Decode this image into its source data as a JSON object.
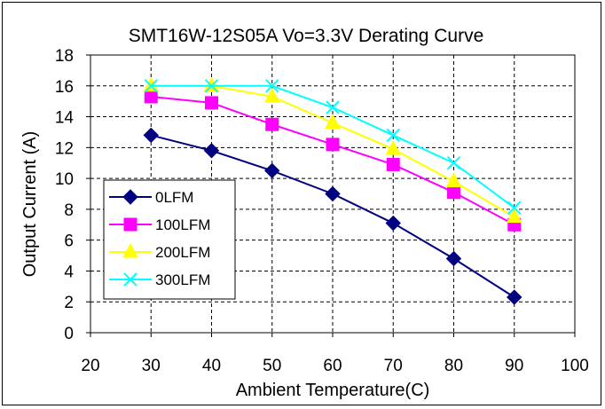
{
  "chart_data": {
    "type": "line",
    "title": "SMT16W-12S05A Vo=3.3V Derating Curve",
    "xlabel": "Ambient Temperature(C)",
    "ylabel": "Output Current (A)",
    "xlim": [
      20,
      100
    ],
    "ylim": [
      0,
      18
    ],
    "xticks": [
      20,
      30,
      40,
      50,
      60,
      70,
      80,
      90,
      100
    ],
    "yticks": [
      0,
      2,
      4,
      6,
      8,
      10,
      12,
      14,
      16,
      18
    ],
    "grid": true,
    "legend_position": "lower-left",
    "x": [
      30,
      40,
      50,
      60,
      70,
      80,
      90
    ],
    "series": [
      {
        "name": "0LFM",
        "color": "#000080",
        "marker": "diamond",
        "values": [
          12.8,
          11.8,
          10.5,
          9.0,
          7.1,
          4.8,
          2.3
        ]
      },
      {
        "name": "100LFM",
        "color": "#FF00FF",
        "marker": "square",
        "values": [
          15.3,
          14.9,
          13.5,
          12.2,
          10.9,
          9.1,
          7.0
        ]
      },
      {
        "name": "200LFM",
        "color": "#FFFF00",
        "marker": "triangle",
        "values": [
          16.0,
          16.0,
          15.3,
          13.6,
          11.9,
          9.8,
          7.5
        ]
      },
      {
        "name": "300LFM",
        "color": "#00FFFF",
        "marker": "x",
        "values": [
          16.0,
          16.0,
          16.0,
          14.6,
          12.8,
          11.0,
          8.1
        ]
      }
    ]
  }
}
